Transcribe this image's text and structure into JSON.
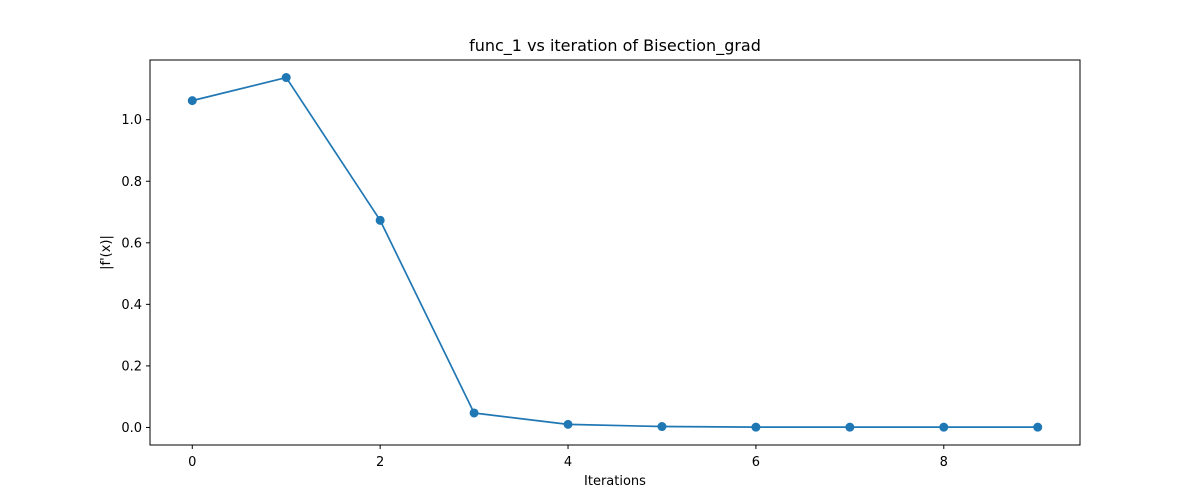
{
  "chart_data": {
    "type": "line",
    "title": "func_1 vs iteration of Bisection_grad",
    "xlabel": "Iterations",
    "ylabel": "|f'(x)|",
    "x": [
      0,
      1,
      2,
      3,
      4,
      5,
      6,
      7,
      8,
      9
    ],
    "series": [
      {
        "values": [
          1.062,
          1.137,
          0.673,
          0.047,
          0.01,
          0.003,
          0.001,
          0.001,
          0.001,
          0.001
        ],
        "color": "#1f77b4",
        "marker": "circle"
      }
    ],
    "xlim": [
      -0.45,
      9.45
    ],
    "ylim": [
      -0.057,
      1.194
    ],
    "xticks": [
      0,
      2,
      4,
      6,
      8
    ],
    "xtick_labels": [
      "0",
      "2",
      "4",
      "6",
      "8"
    ],
    "yticks": [
      0.0,
      0.2,
      0.4,
      0.6,
      0.8,
      1.0
    ],
    "ytick_labels": [
      "0.0",
      "0.2",
      "0.4",
      "0.6",
      "0.8",
      "1.0"
    ],
    "grid": false,
    "legend": "none"
  }
}
